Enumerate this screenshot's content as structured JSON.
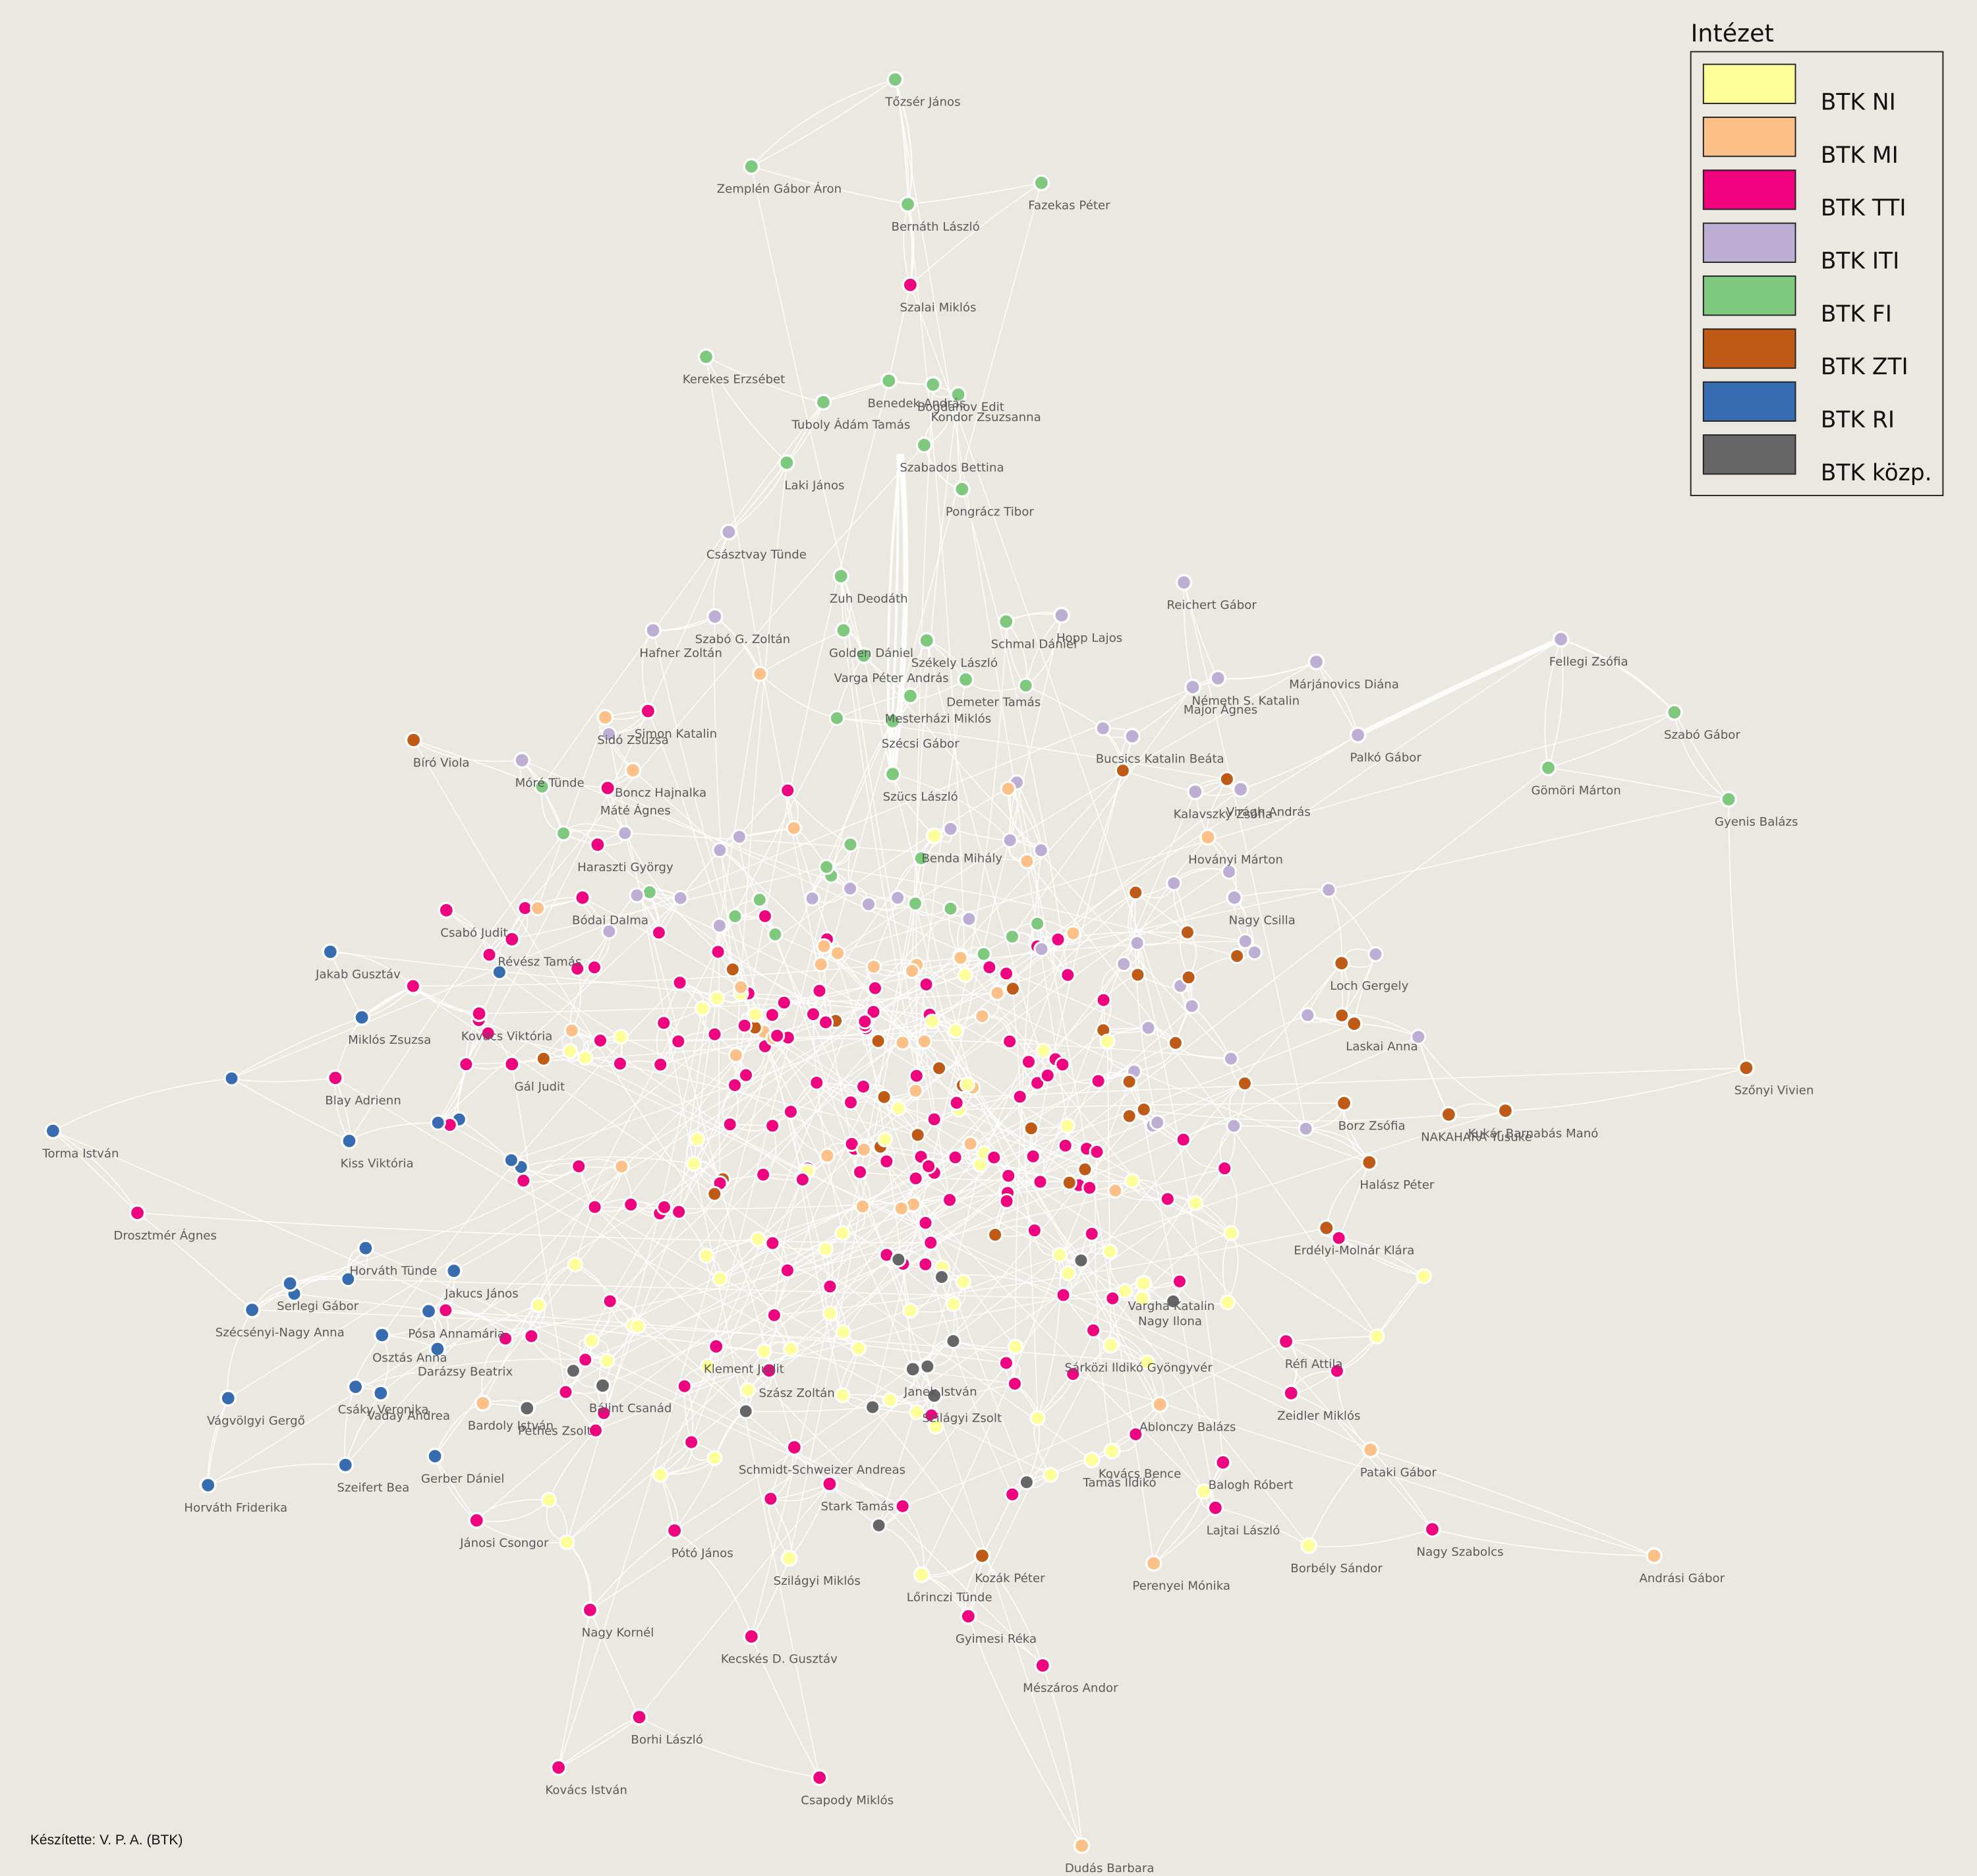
{
  "legend": {
    "title": "Intézet",
    "items": [
      {
        "label": "BTK NI",
        "color": "#ffff99"
      },
      {
        "label": "BTK MI",
        "color": "#fdc086"
      },
      {
        "label": "BTK TTI",
        "color": "#f0027f"
      },
      {
        "label": "BTK ITI",
        "color": "#beaed4"
      },
      {
        "label": "BTK FI",
        "color": "#7fc97f"
      },
      {
        "label": "BTK ZTI",
        "color": "#bf5b17"
      },
      {
        "label": "BTK RI",
        "color": "#386cb0"
      },
      {
        "label": "BTK közp.",
        "color": "#666666"
      }
    ]
  },
  "credit": "Készítette: V. P. A. (BTK)",
  "nodes": [
    {
      "label": "Tőzsér János",
      "group": 4
    },
    {
      "label": "Zemplén Gábor Áron",
      "group": 4
    },
    {
      "label": "Bernáth László",
      "group": 4
    },
    {
      "label": "Fazekas Péter",
      "group": 4
    },
    {
      "label": "Kerekes Erzsébet",
      "group": 4
    },
    {
      "label": "Benedek András",
      "group": 4
    },
    {
      "label": "Bogdanov Edit",
      "group": 4
    },
    {
      "label": "Kondor Zsuzsanna",
      "group": 4
    },
    {
      "label": "Tuboly Ádám Tamás",
      "group": 4
    },
    {
      "label": "Laki János",
      "group": 4
    },
    {
      "label": "Szabados Bettina",
      "group": 4
    },
    {
      "label": "Pongrácz Tibor",
      "group": 4
    },
    {
      "label": "Zuh Deodáth",
      "group": 4
    },
    {
      "label": "Schmal Dániel",
      "group": 4
    },
    {
      "label": "Golden Dániel",
      "group": 4
    },
    {
      "label": "Székely László",
      "group": 4
    },
    {
      "label": "Demeter Tamás",
      "group": 4
    },
    {
      "label": "Varga Péter András",
      "group": 4
    },
    {
      "label": "Mesterházi Miklós",
      "group": 4
    },
    {
      "label": "Szécsi Gábor",
      "group": 4
    },
    {
      "label": "Szücs László",
      "group": 4
    },
    {
      "label": "Szabó Gábor",
      "group": 4
    },
    {
      "label": "Gömöri Márton",
      "group": 4
    },
    {
      "label": "Gyenis Balázs",
      "group": 4
    },
    {
      "label": "Szalai Miklós",
      "group": 2
    },
    {
      "label": "Simon Katalin",
      "group": 2
    },
    {
      "label": "Máté Ágnes",
      "group": 2
    },
    {
      "label": "Haraszti György",
      "group": 2
    },
    {
      "label": "Bódai Dalma",
      "group": 2
    },
    {
      "label": "Csabó Judit",
      "group": 2
    },
    {
      "label": "Révész Tamás",
      "group": 2
    },
    {
      "label": "Gál Judit",
      "group": 2
    },
    {
      "label": "Kovács Viktória",
      "group": 2
    },
    {
      "label": "Blay Adrienn",
      "group": 2
    },
    {
      "label": "Drosztmér Ágnes",
      "group": 2
    },
    {
      "label": "Jánosi Csongor",
      "group": 2
    },
    {
      "label": "Nagy Kornél",
      "group": 2
    },
    {
      "label": "Pótó János",
      "group": 2
    },
    {
      "label": "Kecskés D. Gusztáv",
      "group": 2
    },
    {
      "label": "Kovács István",
      "group": 2
    },
    {
      "label": "Borhi László",
      "group": 2
    },
    {
      "label": "Csapody Miklós",
      "group": 2
    },
    {
      "label": "Nagy Szabolcs",
      "group": 2
    },
    {
      "label": "Lajtai László",
      "group": 2
    },
    {
      "label": "Balogh Róbert",
      "group": 2
    },
    {
      "label": "Zeidler Miklós",
      "group": 2
    },
    {
      "label": "Réfi Attila",
      "group": 2
    },
    {
      "label": "Mészáros Andor",
      "group": 2
    },
    {
      "label": "Gyimesi Réka",
      "group": 2
    },
    {
      "label": "Stark Tamás",
      "group": 2
    },
    {
      "label": "Schmidt-Schweizer Andreas",
      "group": 2
    },
    {
      "label": "Klement Judit",
      "group": 2
    },
    {
      "label": "Szász Zoltán",
      "group": 2
    },
    {
      "label": "Jakab Gusztáv",
      "group": 6
    },
    {
      "label": "Miklós Zsuzsa",
      "group": 6
    },
    {
      "label": "Torma István",
      "group": 6
    },
    {
      "label": "Kiss Viktória",
      "group": 6
    },
    {
      "label": "Horváth Tünde",
      "group": 6
    },
    {
      "label": "Serlegi Gábor",
      "group": 6
    },
    {
      "label": "Szécsényi-Nagy Anna",
      "group": 6
    },
    {
      "label": "Pósa Annamária",
      "group": 6
    },
    {
      "label": "Osztás Anna",
      "group": 6
    },
    {
      "label": "Jakucs János",
      "group": 6
    },
    {
      "label": "Darázsy Beatrix",
      "group": 6
    },
    {
      "label": "Vágvölgyi Gergő",
      "group": 6
    },
    {
      "label": "Csáky Veronika",
      "group": 6
    },
    {
      "label": "Vaday Andrea",
      "group": 6
    },
    {
      "label": "Szeifert Bea",
      "group": 6
    },
    {
      "label": "Gerber Dániel",
      "group": 6
    },
    {
      "label": "Horváth Friderika",
      "group": 6
    },
    {
      "label": "Bíró Viola",
      "group": 5
    },
    {
      "label": "Loch Gergely",
      "group": 5
    },
    {
      "label": "Szőnyi Vivien",
      "group": 5
    },
    {
      "label": "Kukár Barnabás Manó",
      "group": 5
    },
    {
      "label": "NAKAHARA Yusuke",
      "group": 5
    },
    {
      "label": "Halász Péter",
      "group": 5
    },
    {
      "label": "Laskai Anna",
      "group": 5
    },
    {
      "label": "Erdélyi-Molnár Klára",
      "group": 5
    },
    {
      "label": "Borz Zsófia",
      "group": 5
    },
    {
      "label": "Kozák Péter",
      "group": 5
    },
    {
      "label": "Császtvay Tünde",
      "group": 3
    },
    {
      "label": "Hafner Zoltán",
      "group": 3
    },
    {
      "label": "Szabó G. Zoltán",
      "group": 3
    },
    {
      "label": "Reichert Gábor",
      "group": 3
    },
    {
      "label": "Hopp Lajos",
      "group": 3
    },
    {
      "label": "Fellegi Zsófia",
      "group": 3
    },
    {
      "label": "Márjánovics Diána",
      "group": 3
    },
    {
      "label": "Németh S. Katalin",
      "group": 3
    },
    {
      "label": "Major Ágnes",
      "group": 3
    },
    {
      "label": "Palkó Gábor",
      "group": 3
    },
    {
      "label": "Bucsics Katalin Beáta",
      "group": 3
    },
    {
      "label": "Móré Tünde",
      "group": 3
    },
    {
      "label": "Virágh András",
      "group": 3
    },
    {
      "label": "Kalavszky Zsófia",
      "group": 3
    },
    {
      "label": "Nagy Csilla",
      "group": 3
    },
    {
      "label": "Sidó Zsuzsa",
      "group": 1
    },
    {
      "label": "Boncz Hajnalka",
      "group": 1
    },
    {
      "label": "Pataki Gábor",
      "group": 1
    },
    {
      "label": "Andrási Gábor",
      "group": 1
    },
    {
      "label": "Perenyei Mónika",
      "group": 1
    },
    {
      "label": "Dudás Barbara",
      "group": 1
    },
    {
      "label": "Bardoly István",
      "group": 1
    },
    {
      "label": "Hoványi Márton",
      "group": 1
    },
    {
      "label": "Ablonczy Balázs",
      "group": 1
    },
    {
      "label": "Borbély Sándor",
      "group": 0
    },
    {
      "label": "Szilágyi Miklós",
      "group": 0
    },
    {
      "label": "Lőrinczi Tünde",
      "group": 0
    },
    {
      "label": "Kovács Bence",
      "group": 0
    },
    {
      "label": "Tamás Ildikó",
      "group": 0
    },
    {
      "label": "Sárközi Ildikó Gyöngyvér",
      "group": 0
    },
    {
      "label": "Benda Mihály",
      "group": 0
    },
    {
      "label": "Nagy Ilona",
      "group": 0
    },
    {
      "label": "Vargha Katalin",
      "group": 0
    },
    {
      "label": "Bálint Csanád",
      "group": 7
    },
    {
      "label": "Pethes Zsolt",
      "group": 7
    },
    {
      "label": "Janek István",
      "group": 7
    },
    {
      "label": "Szilágyi Zsolt",
      "group": 7
    }
  ]
}
